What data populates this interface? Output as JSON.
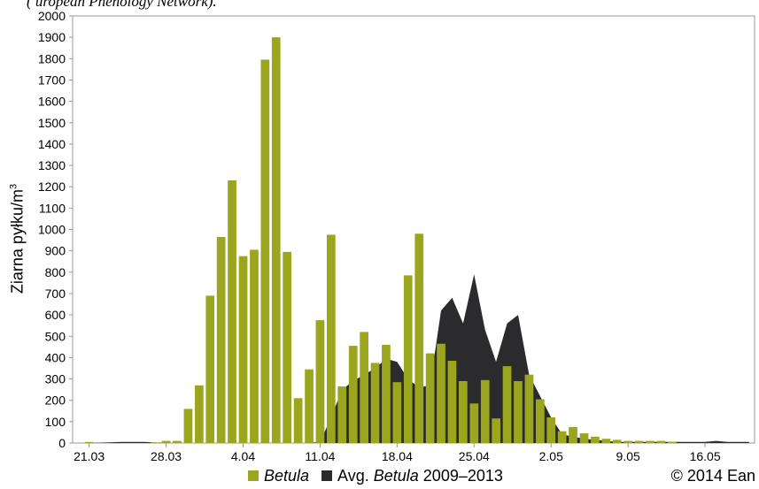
{
  "top_text": "( uropean Phenology Network).",
  "chart_data": {
    "type": "bar",
    "ylabel_main": "Ziarna pyłku/m",
    "ylabel_sup": "3",
    "ylim": [
      0,
      2000
    ],
    "yticks": [
      0,
      100,
      200,
      300,
      400,
      500,
      600,
      700,
      800,
      900,
      1000,
      1100,
      1200,
      1300,
      1400,
      1500,
      1600,
      1700,
      1800,
      1900,
      2000
    ],
    "x_tick_labels": [
      "21.03",
      "28.03",
      "4.04",
      "11.04",
      "18.04",
      "25.04",
      "2.05",
      "9.05",
      "16.05"
    ],
    "x_start": "20.03",
    "x_end": "20.05",
    "series": [
      {
        "name": "Betula",
        "type": "bar",
        "color": "#9aa61d",
        "dates": [
          "21.03",
          "27.03",
          "28.03",
          "29.03",
          "30.03",
          "31.03",
          "1.04",
          "2.04",
          "3.04",
          "4.04",
          "5.04",
          "6.04",
          "7.04",
          "8.04",
          "9.04",
          "10.04",
          "11.04",
          "12.04",
          "13.04",
          "14.04",
          "15.04",
          "16.04",
          "17.04",
          "18.04",
          "19.04",
          "20.04",
          "21.04",
          "22.04",
          "23.04",
          "24.04",
          "25.04",
          "26.04",
          "27.04",
          "28.04",
          "29.04",
          "30.04",
          "1.05",
          "2.05",
          "3.05",
          "4.05",
          "5.05",
          "6.05",
          "7.05",
          "8.05",
          "9.05",
          "10.05",
          "11.05",
          "12.05",
          "13.05"
        ],
        "values": [
          5,
          3,
          10,
          10,
          160,
          270,
          690,
          965,
          1230,
          875,
          905,
          1795,
          1900,
          895,
          210,
          345,
          575,
          975,
          265,
          455,
          520,
          375,
          460,
          285,
          785,
          980,
          420,
          465,
          385,
          290,
          185,
          295,
          115,
          360,
          290,
          320,
          205,
          120,
          55,
          75,
          45,
          30,
          20,
          15,
          10,
          10,
          10,
          10,
          5
        ]
      },
      {
        "name": "Avg. Betula 2009–2013",
        "type": "area",
        "color": "#2b2b2d",
        "dates": [
          "21.03",
          "24.03",
          "26.03",
          "28.03",
          "30.03",
          "1.04",
          "4.04",
          "7.04",
          "10.04",
          "11.04",
          "12.04",
          "13.04",
          "14.04",
          "15.04",
          "16.04",
          "17.04",
          "18.04",
          "19.04",
          "20.04",
          "21.04",
          "22.04",
          "23.04",
          "24.04",
          "25.04",
          "26.04",
          "27.04",
          "28.04",
          "29.04",
          "30.04",
          "1.05",
          "2.05",
          "3.05",
          "4.05",
          "5.05",
          "6.05",
          "7.05",
          "8.05",
          "9.05",
          "10.05",
          "11.05",
          "12.05",
          "13.05",
          "14.05",
          "15.05",
          "16.05",
          "17.05",
          "18.05",
          "19.05",
          "20.05"
        ],
        "values": [
          0,
          5,
          5,
          0,
          0,
          0,
          0,
          0,
          0,
          5,
          120,
          250,
          290,
          320,
          350,
          395,
          380,
          300,
          260,
          270,
          620,
          680,
          560,
          790,
          530,
          380,
          560,
          600,
          320,
          220,
          120,
          40,
          30,
          20,
          15,
          10,
          5,
          5,
          5,
          5,
          5,
          5,
          5,
          5,
          5,
          10,
          5,
          5,
          5
        ]
      }
    ],
    "legend": [
      {
        "name_italic": "Betula",
        "name_pre": "",
        "name_post": "",
        "color": "#9aa61d"
      },
      {
        "name_pre": "Avg. ",
        "name_italic": "Betula",
        "name_post": " 2009–2013",
        "color": "#2b2b2d"
      }
    ],
    "copyright": "© 2014 Ean"
  }
}
